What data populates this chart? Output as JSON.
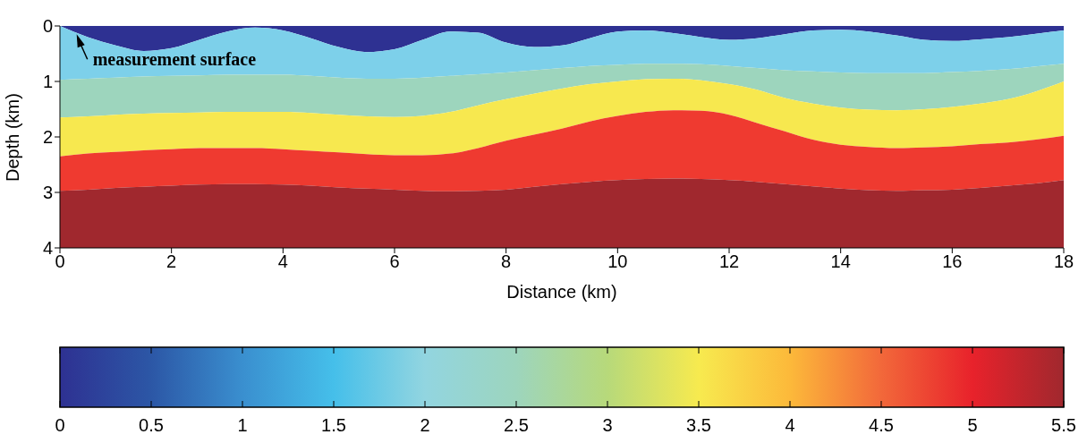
{
  "chart_data": {
    "type": "area",
    "stacked": true,
    "xlabel": "Distance (km)",
    "ylabel": "Depth (km)",
    "x": [
      0,
      0.5,
      1,
      1.5,
      2,
      2.5,
      3,
      3.5,
      4,
      4.5,
      5,
      5.5,
      6,
      6.5,
      7,
      7.5,
      8,
      8.5,
      9,
      9.5,
      10,
      10.5,
      11,
      11.5,
      12,
      12.5,
      13,
      13.5,
      14,
      14.5,
      15,
      15.5,
      16,
      16.5,
      17,
      17.5,
      18
    ],
    "series": [
      {
        "color": "#2e3192",
        "values": [
          0,
          0.2,
          0.35,
          0.45,
          0.4,
          0.25,
          0.1,
          0.03,
          0.08,
          0.22,
          0.38,
          0.47,
          0.42,
          0.25,
          0.1,
          0.12,
          0.3,
          0.38,
          0.35,
          0.22,
          0.1,
          0.08,
          0.13,
          0.2,
          0.25,
          0.22,
          0.15,
          0.08,
          0.07,
          0.1,
          0.17,
          0.25,
          0.27,
          0.24,
          0.2,
          0.14,
          0.08
        ]
      },
      {
        "color": "#7dd0ea",
        "values": [
          0.97,
          0.75,
          0.58,
          0.46,
          0.5,
          0.64,
          0.78,
          0.85,
          0.8,
          0.68,
          0.55,
          0.48,
          0.53,
          0.68,
          0.8,
          0.75,
          0.54,
          0.42,
          0.41,
          0.5,
          0.6,
          0.6,
          0.55,
          0.49,
          0.47,
          0.54,
          0.65,
          0.74,
          0.77,
          0.75,
          0.68,
          0.6,
          0.56,
          0.57,
          0.58,
          0.59,
          0.6
        ]
      },
      {
        "color": "#9dd5bd",
        "values": [
          0.68,
          0.68,
          0.67,
          0.67,
          0.67,
          0.67,
          0.67,
          0.67,
          0.67,
          0.67,
          0.67,
          0.68,
          0.69,
          0.69,
          0.65,
          0.56,
          0.48,
          0.42,
          0.37,
          0.33,
          0.3,
          0.28,
          0.27,
          0.29,
          0.33,
          0.39,
          0.5,
          0.58,
          0.63,
          0.66,
          0.67,
          0.65,
          0.63,
          0.59,
          0.54,
          0.45,
          0.32
        ]
      },
      {
        "color": "#f7e84f",
        "values": [
          0.7,
          0.67,
          0.67,
          0.66,
          0.65,
          0.64,
          0.65,
          0.65,
          0.67,
          0.68,
          0.68,
          0.68,
          0.69,
          0.71,
          0.75,
          0.77,
          0.75,
          0.74,
          0.72,
          0.67,
          0.62,
          0.59,
          0.57,
          0.55,
          0.55,
          0.6,
          0.6,
          0.65,
          0.67,
          0.67,
          0.68,
          0.69,
          0.71,
          0.73,
          0.78,
          0.87,
          0.98
        ]
      },
      {
        "color": "#ef3a30",
        "values": [
          0.62,
          0.65,
          0.65,
          0.66,
          0.66,
          0.66,
          0.65,
          0.65,
          0.64,
          0.63,
          0.63,
          0.62,
          0.62,
          0.64,
          0.68,
          0.77,
          0.88,
          0.94,
          1.0,
          1.09,
          1.16,
          1.21,
          1.23,
          1.23,
          1.18,
          1.06,
          0.95,
          0.84,
          0.79,
          0.78,
          0.77,
          0.77,
          0.78,
          0.79,
          0.78,
          0.79,
          0.8
        ]
      },
      {
        "color": "#a0282e",
        "values": [
          1.03,
          1.05,
          1.08,
          1.1,
          1.12,
          1.14,
          1.15,
          1.15,
          1.14,
          1.12,
          1.09,
          1.07,
          1.05,
          1.03,
          1.02,
          1.03,
          1.05,
          1.1,
          1.15,
          1.19,
          1.22,
          1.24,
          1.25,
          1.24,
          1.22,
          1.19,
          1.15,
          1.11,
          1.07,
          1.04,
          1.03,
          1.04,
          1.05,
          1.08,
          1.12,
          1.16,
          1.22
        ]
      }
    ],
    "xlim": [
      0,
      18
    ],
    "xticks": [
      0,
      2,
      4,
      6,
      8,
      10,
      12,
      14,
      16,
      18
    ],
    "ylim": [
      4,
      0
    ],
    "yticks": [
      0,
      1,
      2,
      3,
      4
    ],
    "annotations": [
      {
        "text": "measurement surface",
        "x": 0.3,
        "y": 0.15
      }
    ],
    "clim": [
      0,
      5.5
    ],
    "cticks": [
      0,
      0.5,
      1,
      1.5,
      2,
      2.5,
      3,
      3.5,
      4,
      4.5,
      5,
      5.5
    ],
    "grid": false,
    "legend": false
  }
}
